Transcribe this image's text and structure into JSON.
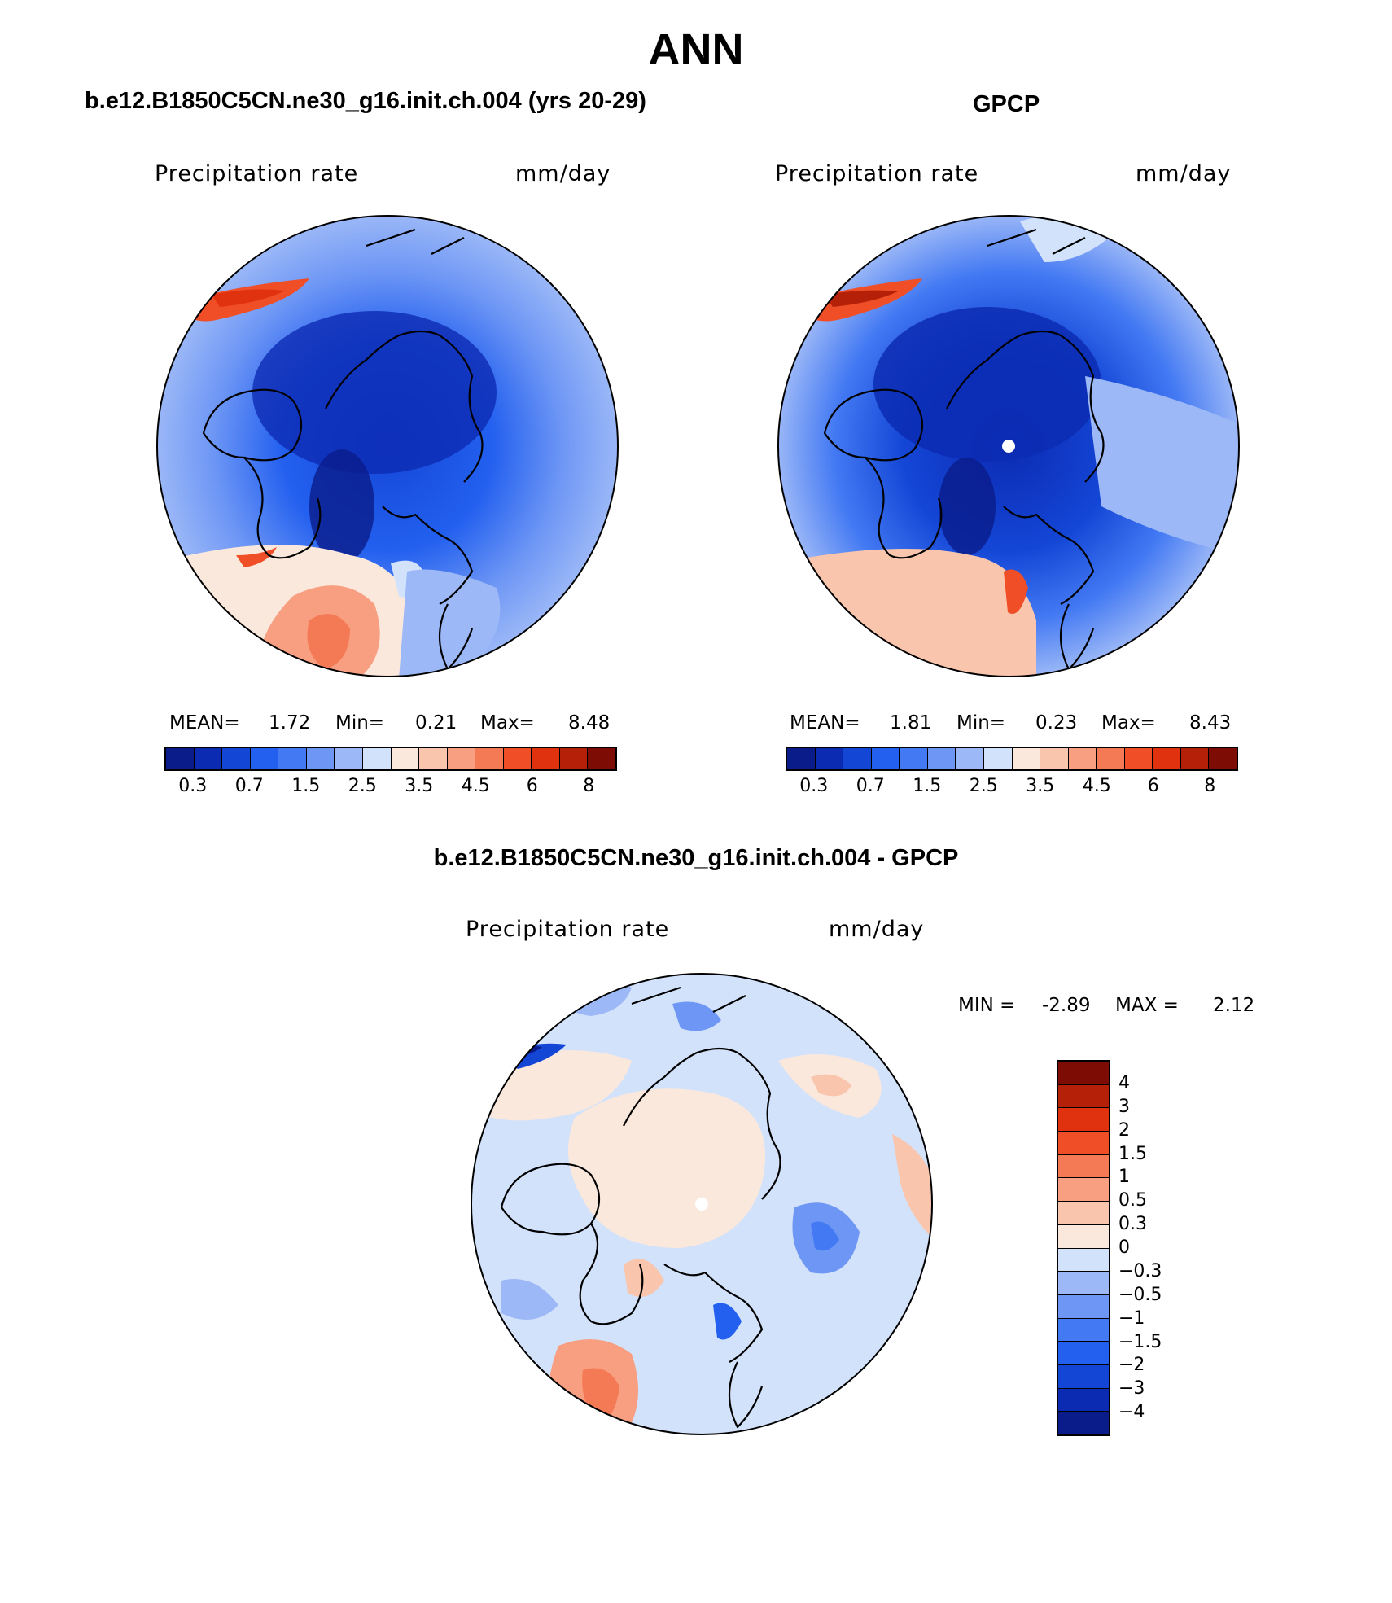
{
  "title": "ANN",
  "difference_title": "b.e12.B1850C5CN.ne30_g16.init.ch.004 - GPCP",
  "colors": {
    "abs_scale": [
      "#0a1b8a",
      "#0c2bb3",
      "#1446d6",
      "#2360ef",
      "#4379f3",
      "#6d96f5",
      "#9cb8f7",
      "#d3e2fb",
      "#fbe8dc",
      "#f9c6ad",
      "#f79f80",
      "#f47a55",
      "#ef4e26",
      "#e1320f",
      "#b52008",
      "#7d0c05"
    ],
    "diff_scale": [
      "#0a1b8a",
      "#0c2bb3",
      "#1446d6",
      "#2360ef",
      "#4379f3",
      "#6d96f5",
      "#9cb8f7",
      "#d3e2fb",
      "#fbe8dc",
      "#f9c6ad",
      "#f79f80",
      "#f47a55",
      "#ef4e26",
      "#e1320f",
      "#b52008",
      "#7d0c05"
    ],
    "coastline": "#000000",
    "pole_marker": "#ffffff"
  },
  "panels": [
    {
      "case_title": "b.e12.B1850C5CN.ne30_g16.init.ch.004 (yrs 20-29)",
      "variable": "Precipitation rate",
      "units": "mm/day",
      "mean_label": "MEAN=",
      "mean_value": "1.72",
      "min_label": "Min=",
      "min_value": "0.21",
      "max_label": "Max=",
      "max_value": "8.48",
      "ticks": [
        "0.3",
        "0.7",
        "1.5",
        "2.5",
        "3.5",
        "4.5",
        "6",
        "8"
      ]
    },
    {
      "case_title": "GPCP",
      "variable": "Precipitation rate",
      "units": "mm/day",
      "mean_label": "MEAN=",
      "mean_value": "1.81",
      "min_label": "Min=",
      "min_value": "0.23",
      "max_label": "Max=",
      "max_value": "8.43",
      "ticks": [
        "0.3",
        "0.7",
        "1.5",
        "2.5",
        "3.5",
        "4.5",
        "6",
        "8"
      ]
    }
  ],
  "difference": {
    "variable": "Precipitation rate",
    "units": "mm/day",
    "min_label": "MIN =",
    "min_value": "-2.89",
    "max_label": "MAX =",
    "max_value": "2.12",
    "ticks": [
      "4",
      "3",
      "2",
      "1.5",
      "1",
      "0.5",
      "0.3",
      "0",
      "-0.3",
      "-0.5",
      "-1",
      "-1.5",
      "-2",
      "-3",
      "-4"
    ]
  }
}
